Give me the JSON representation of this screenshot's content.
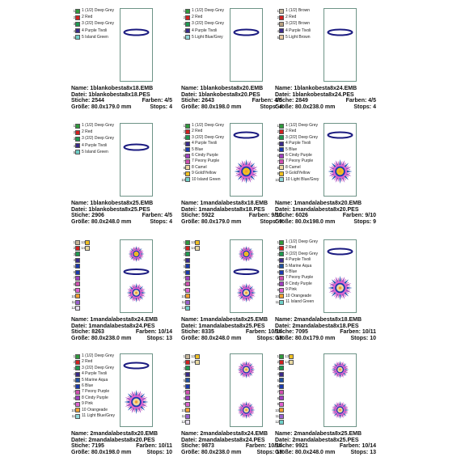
{
  "labels": {
    "name": "Name:",
    "datei": "Datei:",
    "stiche": "Stiche:",
    "farben": "Farben:",
    "groesse": "Größe:",
    "stops": "Stops:"
  },
  "cells": [
    {
      "colors": [
        {
          "n": "1",
          "name": "1 (1/2) Deep Grey",
          "color": "#2f9a3c"
        },
        {
          "n": "2",
          "name": "2 Red",
          "color": "#d42020"
        },
        {
          "n": "3",
          "name": "3 (2/2) Deep Grey",
          "color": "#1e9a50"
        },
        {
          "n": "4",
          "name": "4 Purple Tivoli",
          "color": "#3a2a8a"
        },
        {
          "n": "5",
          "name": "5 Island Green",
          "color": "#6fd0c8"
        }
      ],
      "name": "1blankobesta8x18.EMB",
      "datei": "1blankobesta8x18.PES",
      "stiche": "2544",
      "farben": "4/5",
      "groesse": "80.0x179.0 mm",
      "stops": "4"
    },
    {
      "colors": [
        {
          "n": "1",
          "name": "1 (1/2) Deep Grey",
          "color": "#2f9a3c"
        },
        {
          "n": "2",
          "name": "2 Red",
          "color": "#d42020"
        },
        {
          "n": "3",
          "name": "3 (2/2) Deep Grey",
          "color": "#1e9a50"
        },
        {
          "n": "4",
          "name": "4 Purple Tivoli",
          "color": "#3a2a8a"
        },
        {
          "n": "5",
          "name": "5 Light Blue/Grey",
          "color": "#8fd8d8"
        }
      ],
      "name": "1blankobesta8x20.EMB",
      "datei": "1blankobesta8x20.PES",
      "stiche": "2643",
      "farben": "4/5",
      "groesse": "80.0x198.0 mm",
      "stops": "4"
    },
    {
      "colors": [
        {
          "n": "1",
          "name": "1 (1/2) Brown",
          "color": "#c8b89a"
        },
        {
          "n": "2",
          "name": "2 Red",
          "color": "#d42020"
        },
        {
          "n": "3",
          "name": "3 (2/2) Brown",
          "color": "#b8a080"
        },
        {
          "n": "4",
          "name": "4 Purple Tivoli",
          "color": "#3a2a8a"
        },
        {
          "n": "5",
          "name": "5 Light Brown",
          "color": "#e8c8a0"
        }
      ],
      "name": "1blankobesta8x24.EMB",
      "datei": "1blankobesta8x24.PES",
      "stiche": "2849",
      "farben": "4/5",
      "groesse": "80.0x238.0 mm",
      "stops": "4"
    },
    {
      "colors": [
        {
          "n": "1",
          "name": "1 (1/2) Deep Grey",
          "color": "#2f9a3c"
        },
        {
          "n": "2",
          "name": "2 Red",
          "color": "#d42020"
        },
        {
          "n": "3",
          "name": "3 (2/2) Deep Grey",
          "color": "#1e9a50"
        },
        {
          "n": "4",
          "name": "4 Purple Tivoli",
          "color": "#3a2a8a"
        },
        {
          "n": "5",
          "name": "5 Island Green",
          "color": "#6fd0c8"
        }
      ],
      "name": "1blankobesta8x25.EMB",
      "datei": "1blankobesta8x25.PES",
      "stiche": "2906",
      "farben": "4/5",
      "groesse": "80.0x248.0 mm",
      "stops": "4"
    },
    {
      "colors": [
        {
          "n": "1",
          "name": "1 (1/2) Deep Grey",
          "color": "#2f9a3c"
        },
        {
          "n": "2",
          "name": "2 Red",
          "color": "#d42020"
        },
        {
          "n": "3",
          "name": "3 (2/2) Deep Grey",
          "color": "#1e9a50"
        },
        {
          "n": "4",
          "name": "4 Purple Tivoli",
          "color": "#3a2a8a"
        },
        {
          "n": "5",
          "name": "5 Blue",
          "color": "#1a3ab0"
        },
        {
          "n": "6",
          "name": "6 Cindy Purple",
          "color": "#a040c0"
        },
        {
          "n": "7",
          "name": "7 Peony Purple",
          "color": "#d050b0"
        },
        {
          "n": "8",
          "name": "8 Camel",
          "color": "#f0d8a0"
        },
        {
          "n": "9",
          "name": "9 Gold/Yellow",
          "color": "#f0c020"
        },
        {
          "n": "10",
          "name": "10 Island Green",
          "color": "#6fd0c8"
        }
      ],
      "name": "1mandalabesta8x18.EMB",
      "datei": "1mandalabesta8x18.PES",
      "stiche": "5922",
      "farben": "9/10",
      "groesse": "80.0x179.0 mm",
      "stops": "9"
    },
    {
      "colors": [
        {
          "n": "1",
          "name": "1 (1/2) Deep Grey",
          "color": "#2f9a3c"
        },
        {
          "n": "2",
          "name": "2 Red",
          "color": "#d42020"
        },
        {
          "n": "3",
          "name": "3 (2/2) Deep Grey",
          "color": "#1e9a50"
        },
        {
          "n": "4",
          "name": "4 Purple Tivoli",
          "color": "#3a2a8a"
        },
        {
          "n": "5",
          "name": "5 Blue",
          "color": "#1a3ab0"
        },
        {
          "n": "6",
          "name": "6 Cindy Purple",
          "color": "#a040c0"
        },
        {
          "n": "7",
          "name": "7 Peony Purple",
          "color": "#d050b0"
        },
        {
          "n": "8",
          "name": "8 Camel",
          "color": "#f0d8a0"
        },
        {
          "n": "9",
          "name": "9 Gold/Yellow",
          "color": "#f0c020"
        },
        {
          "n": "10",
          "name": "10 Light Blue/Grey",
          "color": "#8fd8d8"
        }
      ],
      "name": "1mandalabesta8x20.EMB",
      "datei": "1mandalabesta8x20.PES",
      "stiche": "6026",
      "farben": "9/10",
      "groesse": "80.0x198.0 mm",
      "stops": "9"
    },
    {
      "colors": [
        {
          "n": "1",
          "color": "#c8b89a"
        },
        {
          "n": "2",
          "color": "#d42020"
        },
        {
          "n": "3",
          "color": "#1e9a50"
        },
        {
          "n": "4",
          "color": "#3a2a8a"
        },
        {
          "n": "5",
          "color": "#1a3ab0"
        },
        {
          "n": "6",
          "color": "#1a3ab0"
        },
        {
          "n": "7",
          "color": "#a040c0"
        },
        {
          "n": "8",
          "color": "#d050b0"
        },
        {
          "n": "9",
          "color": "#e060d0"
        },
        {
          "n": "10",
          "color": "#f0a030"
        },
        {
          "n": "11",
          "color": "#9a60d0"
        },
        {
          "n": "12",
          "color": "#e8e0f0"
        },
        {
          "n": "13",
          "color": "#f0c020"
        },
        {
          "n": "14",
          "color": "#e8d8a0"
        }
      ],
      "name": "1mandalabesta8x24.EMB",
      "datei": "1mandalabesta8x24.PES",
      "stiche": "8263",
      "farben": "10/14",
      "groesse": "80.0x238.0 mm",
      "stops": "13"
    },
    {
      "colors": [
        {
          "n": "1",
          "color": "#2f9a3c"
        },
        {
          "n": "2",
          "color": "#d42020"
        },
        {
          "n": "3",
          "color": "#1e9a50"
        },
        {
          "n": "4",
          "color": "#3a2a8a"
        },
        {
          "n": "5",
          "color": "#1a3ab0"
        },
        {
          "n": "6",
          "color": "#1a3ab0"
        },
        {
          "n": "7",
          "color": "#a040c0"
        },
        {
          "n": "8",
          "color": "#d050b0"
        },
        {
          "n": "9",
          "color": "#e060d0"
        },
        {
          "n": "10",
          "color": "#f0a030"
        },
        {
          "n": "11",
          "color": "#9a60d0"
        },
        {
          "n": "12",
          "color": "#6fd0c8"
        },
        {
          "n": "13",
          "color": "#f0c020"
        },
        {
          "n": "14",
          "color": "#e8d8a0"
        }
      ],
      "name": "1mandalabesta8x25.EMB",
      "datei": "1mandalabesta8x25.PES",
      "stiche": "8335",
      "farben": "10/14",
      "groesse": "80.0x248.0 mm",
      "stops": "13"
    },
    {
      "colors": [
        {
          "n": "1",
          "name": "1 (1/2) Deep Grey",
          "color": "#2f9a3c"
        },
        {
          "n": "2",
          "name": "2 Red",
          "color": "#d42020"
        },
        {
          "n": "3",
          "name": "3 (2/2) Deep Grey",
          "color": "#1e9a50"
        },
        {
          "n": "4",
          "name": "4 Purple Tivoli",
          "color": "#3a2a8a"
        },
        {
          "n": "5",
          "name": "5 Marine Aqua",
          "color": "#2050a0"
        },
        {
          "n": "6",
          "name": "6 Blue",
          "color": "#1a3ab0"
        },
        {
          "n": "7",
          "name": "7 Peony Purple",
          "color": "#d050b0"
        },
        {
          "n": "8",
          "name": "8 Cindy Purple",
          "color": "#a040c0"
        },
        {
          "n": "9",
          "name": "9 Pink",
          "color": "#e060d0"
        },
        {
          "n": "10",
          "name": "10 Orangeade",
          "color": "#f0a030"
        },
        {
          "n": "11",
          "name": "11 Island Green",
          "color": "#6fd0c8"
        }
      ],
      "name": "2mandalabesta8x18.EMB",
      "datei": "2mandalabesta8x18.PES",
      "stiche": "7095",
      "farben": "10/11",
      "groesse": "80.0x179.0 mm",
      "stops": "10"
    },
    {
      "colors": [
        {
          "n": "1",
          "name": "1 (1/2) Deep Grey",
          "color": "#2f9a3c"
        },
        {
          "n": "2",
          "name": "2 Red",
          "color": "#d42020"
        },
        {
          "n": "3",
          "name": "3 (2/2) Deep Grey",
          "color": "#1e9a50"
        },
        {
          "n": "4",
          "name": "4 Purple Tivoli",
          "color": "#3a2a8a"
        },
        {
          "n": "5",
          "name": "5 Marine Aqua",
          "color": "#2050a0"
        },
        {
          "n": "6",
          "name": "6 Blue",
          "color": "#1a3ab0"
        },
        {
          "n": "7",
          "name": "7 Peony Purple",
          "color": "#d050b0"
        },
        {
          "n": "8",
          "name": "8 Cindy Purple",
          "color": "#a040c0"
        },
        {
          "n": "9",
          "name": "9 Pink",
          "color": "#e060d0"
        },
        {
          "n": "10",
          "name": "10 Orangeade",
          "color": "#f0a030"
        },
        {
          "n": "11",
          "name": "11 Light Blue/Grey",
          "color": "#8fd8d8"
        }
      ],
      "name": "2mandalabesta8x20.EMB",
      "datei": "2mandalabesta8x20.PES",
      "stiche": "7195",
      "farben": "10/11",
      "groesse": "80.0x198.0 mm",
      "stops": "10"
    },
    {
      "colors": [
        {
          "n": "1",
          "color": "#c8b89a"
        },
        {
          "n": "2",
          "color": "#d42020"
        },
        {
          "n": "3",
          "color": "#1e9a50"
        },
        {
          "n": "4",
          "color": "#3a2a8a"
        },
        {
          "n": "5",
          "color": "#2050a0"
        },
        {
          "n": "6",
          "color": "#1a3ab0"
        },
        {
          "n": "7",
          "color": "#d050b0"
        },
        {
          "n": "8",
          "color": "#a040c0"
        },
        {
          "n": "9",
          "color": "#e060d0"
        },
        {
          "n": "10",
          "color": "#f0a030"
        },
        {
          "n": "11",
          "color": "#9a60d0"
        },
        {
          "n": "12",
          "color": "#e8e0f0"
        },
        {
          "n": "13",
          "color": "#f0c020"
        },
        {
          "n": "14",
          "color": "#e8d8a0"
        }
      ],
      "name": "2mandalabesta8x24.EMB",
      "datei": "2mandalabesta8x24.PES",
      "stiche": "9873",
      "farben": "10/14",
      "groesse": "80.0x238.0 mm",
      "stops": "13"
    },
    {
      "colors": [
        {
          "n": "1",
          "color": "#2f9a3c"
        },
        {
          "n": "2",
          "color": "#d42020"
        },
        {
          "n": "3",
          "color": "#1e9a50"
        },
        {
          "n": "4",
          "color": "#3a2a8a"
        },
        {
          "n": "5",
          "color": "#2050a0"
        },
        {
          "n": "6",
          "color": "#1a3ab0"
        },
        {
          "n": "7",
          "color": "#d050b0"
        },
        {
          "n": "8",
          "color": "#a040c0"
        },
        {
          "n": "9",
          "color": "#e060d0"
        },
        {
          "n": "10",
          "color": "#f0a030"
        },
        {
          "n": "11",
          "color": "#9a60d0"
        },
        {
          "n": "12",
          "color": "#6fd0c8"
        },
        {
          "n": "13",
          "color": "#f0c020"
        },
        {
          "n": "14",
          "color": "#e8d8a0"
        }
      ],
      "name": "2mandalabesta8x25.EMB",
      "datei": "2mandalabesta8x25.PES",
      "stiche": "9921",
      "farben": "10/14",
      "groesse": "80.0x248.0 mm",
      "stops": "13"
    }
  ]
}
